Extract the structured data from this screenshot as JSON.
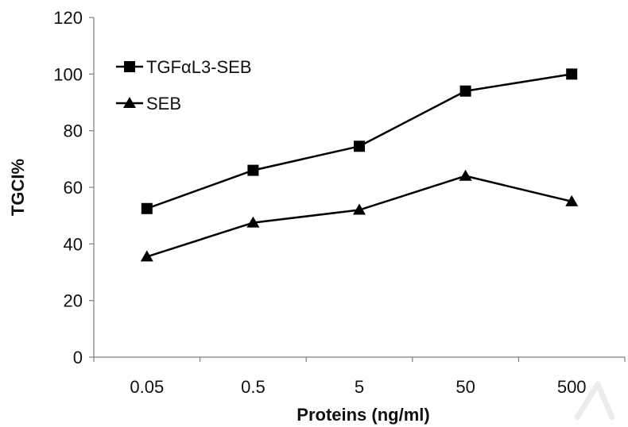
{
  "chart_data": {
    "type": "line",
    "title": "",
    "xlabel": "Proteins (ng/ml)",
    "ylabel": "TGCI%",
    "categories": [
      "0.05",
      "0.5",
      "5",
      "50",
      "500"
    ],
    "ylim": [
      0,
      120
    ],
    "yticks": [
      0,
      20,
      40,
      60,
      80,
      100,
      120
    ],
    "grid": false,
    "legend_position": "top-left",
    "series": [
      {
        "name": "TGFαL3-SEB",
        "marker": "square",
        "color": "#000000",
        "values": [
          52.5,
          66,
          74.5,
          94,
          100
        ]
      },
      {
        "name": "SEB",
        "marker": "triangle",
        "color": "#000000",
        "values": [
          35.5,
          47.5,
          52,
          64,
          55
        ]
      }
    ]
  }
}
